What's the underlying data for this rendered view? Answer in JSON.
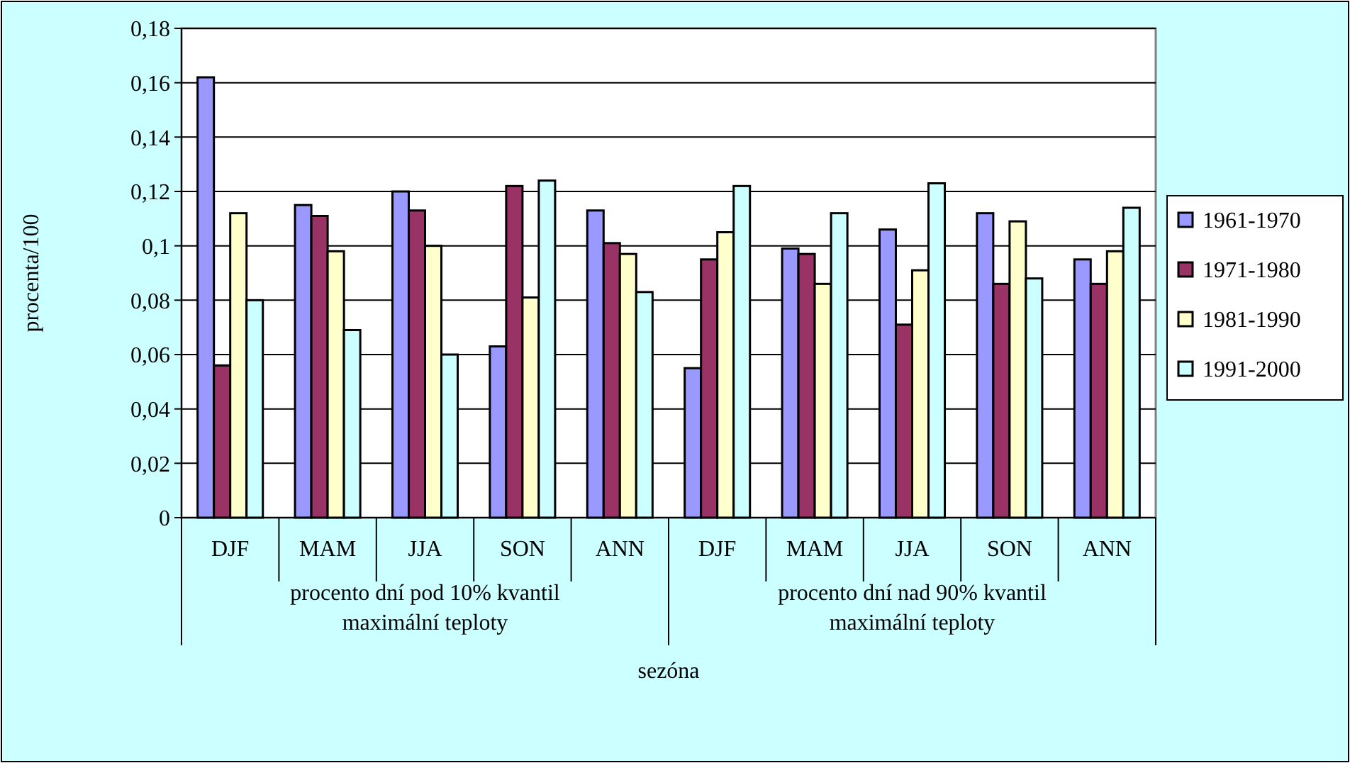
{
  "chart_data": {
    "type": "bar",
    "xlabel": "sezóna",
    "ylabel": "procenta/100",
    "categories": [
      "DJF",
      "MAM",
      "JJA",
      "SON",
      "ANN",
      "DJF",
      "MAM",
      "JJA",
      "SON",
      "ANN"
    ],
    "series": [
      {
        "name": "1961-1970",
        "color": "#9999ff",
        "values": [
          0.162,
          0.115,
          0.12,
          0.063,
          0.113,
          0.055,
          0.099,
          0.106,
          0.112,
          0.095
        ]
      },
      {
        "name": "1971-1980",
        "color": "#993366",
        "values": [
          0.056,
          0.111,
          0.113,
          0.122,
          0.101,
          0.095,
          0.097,
          0.071,
          0.086,
          0.086
        ]
      },
      {
        "name": "1981-1990",
        "color": "#ffffcc",
        "values": [
          0.112,
          0.098,
          0.1,
          0.081,
          0.097,
          0.105,
          0.086,
          0.091,
          0.109,
          0.098
        ]
      },
      {
        "name": "1991-2000",
        "color": "#ccffff",
        "values": [
          0.08,
          0.069,
          0.06,
          0.124,
          0.083,
          0.122,
          0.112,
          0.123,
          0.088,
          0.114
        ]
      }
    ],
    "ylim": [
      0,
      0.18
    ],
    "yticks": [
      {
        "value": 0,
        "label": "0"
      },
      {
        "value": 0.02,
        "label": "0,02"
      },
      {
        "value": 0.04,
        "label": "0,04"
      },
      {
        "value": 0.06,
        "label": "0,06"
      },
      {
        "value": 0.08,
        "label": "0,08"
      },
      {
        "value": 0.1,
        "label": "0,1"
      },
      {
        "value": 0.12,
        "label": "0,12"
      },
      {
        "value": 0.14,
        "label": "0,14"
      },
      {
        "value": 0.16,
        "label": "0,16"
      },
      {
        "value": 0.18,
        "label": "0,18"
      }
    ],
    "grid": "y",
    "legend": "right",
    "annotations": [
      "procento dní pod 10% kvantil maximální teploty",
      "procento dní nad 90% kvantil maximální teploty"
    ]
  }
}
